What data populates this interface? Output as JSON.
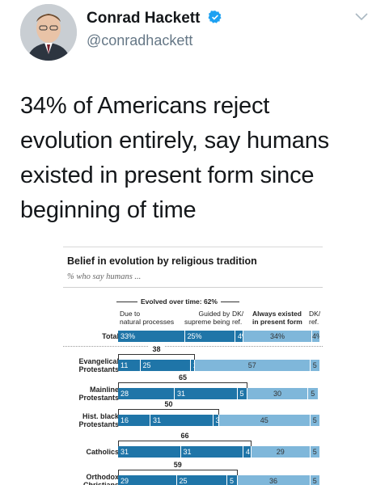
{
  "tweet": {
    "author_name": "Conrad Hackett",
    "handle": "@conradhackett",
    "verified": true,
    "text": "34% of Americans reject\nevolution entirely, say humans\nexisted in present form since\nbeginning of time"
  },
  "icons": {
    "verified": "verified-badge-icon",
    "menu": "chevron-down-icon"
  },
  "colors": {
    "verified": "#1da1f2",
    "evolved_bar": "#1f75a8",
    "present_form_bar": "#7fb7da"
  },
  "chart_data": {
    "type": "bar",
    "orientation": "horizontal-stacked",
    "title": "Belief in evolution by religious tradition",
    "subtitle": "% who say humans ...",
    "group_header": "Evolved over time: 62%",
    "column_headers": {
      "natural": "Due to\nnatural processes",
      "supreme": "Guided by\nsupreme being",
      "dk_ref_1": "DK/\nref.",
      "always": "Always existed\nin present form",
      "dk_ref_2": "DK/\nref."
    },
    "categories": [
      "Total",
      "Evangelical\nProtestants",
      "Mainline\nProtestants",
      "Hist. black\nProtestants",
      "Catholics",
      "Orthodox\nChristians"
    ],
    "evolved_totals": [
      null,
      38,
      65,
      50,
      66,
      59
    ],
    "series": [
      {
        "name": "Due to natural processes",
        "values": [
          33,
          11,
          28,
          16,
          31,
          29
        ],
        "labels": [
          "33%",
          "11",
          "28",
          "16",
          "31",
          "29"
        ]
      },
      {
        "name": "Guided by supreme being",
        "values": [
          25,
          25,
          31,
          31,
          31,
          25
        ],
        "labels": [
          "25%",
          "25",
          "31",
          "31",
          "31",
          "25"
        ]
      },
      {
        "name": "DK/ref. (evolved)",
        "values": [
          4,
          2,
          5,
          3,
          4,
          5
        ],
        "labels": [
          "4%",
          "2",
          "5",
          "3",
          "4",
          "5"
        ]
      },
      {
        "name": "Always existed in present form",
        "values": [
          34,
          57,
          30,
          45,
          29,
          36
        ],
        "labels": [
          "34%",
          "57",
          "30",
          "45",
          "29",
          "36"
        ]
      },
      {
        "name": "DK/ref.",
        "values": [
          4,
          5,
          5,
          5,
          5,
          5
        ],
        "labels": [
          "4%",
          "5",
          "5",
          "5",
          "5",
          "5"
        ]
      }
    ]
  }
}
